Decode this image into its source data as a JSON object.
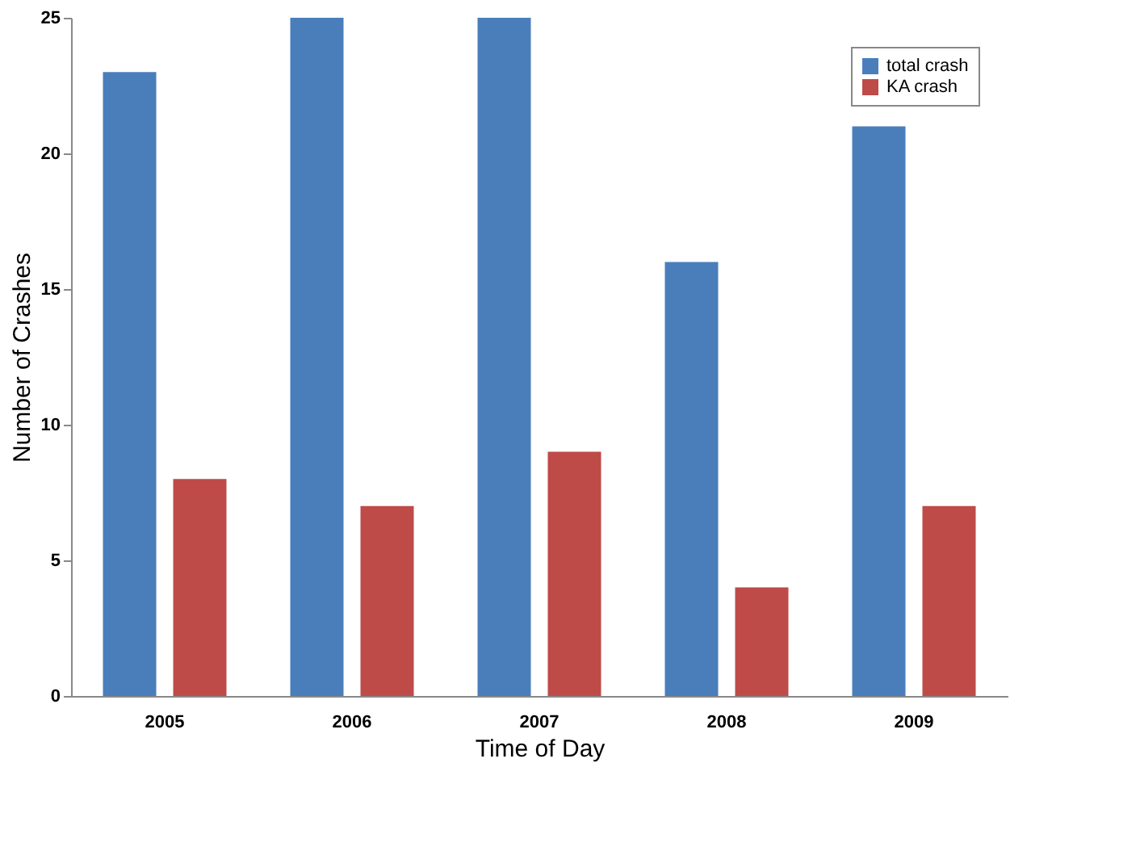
{
  "chart_data": {
    "type": "bar",
    "xlabel": "Time of Day",
    "ylabel": "Number of Crashes",
    "categories": [
      "2005",
      "2006",
      "2007",
      "2008",
      "2009"
    ],
    "series": [
      {
        "name": "total crash",
        "color": "#4a7ebb",
        "values": [
          23,
          25,
          25,
          16,
          21
        ]
      },
      {
        "name": "KA crash",
        "color": "#be4b48",
        "values": [
          8,
          7,
          9,
          4,
          7
        ]
      }
    ],
    "ylim": [
      0,
      25
    ],
    "yticks": [
      0,
      5,
      10,
      15,
      20,
      25
    ],
    "grid": false,
    "legend": "top right"
  }
}
